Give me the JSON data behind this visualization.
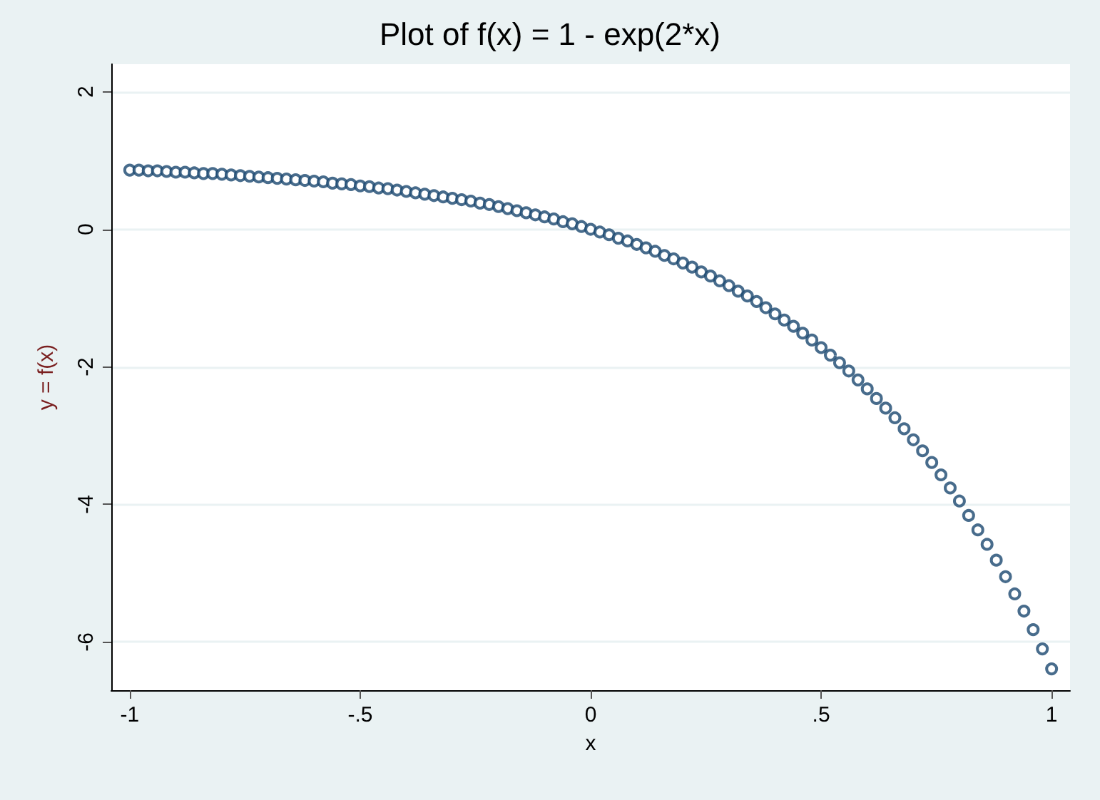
{
  "chart_data": {
    "type": "scatter",
    "title": "Plot of f(x) = 1 - exp(2*x)",
    "xlabel": "x",
    "ylabel": "y = f(x)",
    "x": [
      -1,
      -0.98,
      -0.96,
      -0.94,
      -0.92,
      -0.9,
      -0.88,
      -0.86,
      -0.84,
      -0.82,
      -0.8,
      -0.78,
      -0.76,
      -0.74,
      -0.72,
      -0.7,
      -0.68,
      -0.66,
      -0.64,
      -0.62,
      -0.6,
      -0.58,
      -0.56,
      -0.54,
      -0.52,
      -0.5,
      -0.48,
      -0.46,
      -0.44,
      -0.42,
      -0.4,
      -0.38,
      -0.36,
      -0.34,
      -0.32,
      -0.3,
      -0.28,
      -0.26,
      -0.24,
      -0.22,
      -0.2,
      -0.18,
      -0.16,
      -0.14,
      -0.12,
      -0.1,
      -0.08,
      -0.06,
      -0.04,
      -0.02,
      0,
      0.02,
      0.04,
      0.06,
      0.08,
      0.1,
      0.12,
      0.14,
      0.16,
      0.18,
      0.2,
      0.22,
      0.24,
      0.26,
      0.28,
      0.3,
      0.32,
      0.34,
      0.36,
      0.38,
      0.4,
      0.42,
      0.44,
      0.46,
      0.48,
      0.5,
      0.52,
      0.54,
      0.56,
      0.58,
      0.6,
      0.62,
      0.64,
      0.66,
      0.68,
      0.7,
      0.72,
      0.74,
      0.76,
      0.78,
      0.8,
      0.82,
      0.84,
      0.86,
      0.88,
      0.9,
      0.92,
      0.94,
      0.96,
      0.98,
      1
    ],
    "series": [
      {
        "color": "#1a476f",
        "values": [
          0.86,
          0.86,
          0.85,
          0.85,
          0.84,
          0.83,
          0.83,
          0.82,
          0.81,
          0.81,
          0.8,
          0.79,
          0.78,
          0.77,
          0.76,
          0.75,
          0.74,
          0.73,
          0.72,
          0.71,
          0.7,
          0.69,
          0.67,
          0.66,
          0.65,
          0.63,
          0.62,
          0.6,
          0.59,
          0.57,
          0.55,
          0.53,
          0.51,
          0.49,
          0.47,
          0.45,
          0.43,
          0.41,
          0.38,
          0.36,
          0.33,
          0.3,
          0.27,
          0.24,
          0.21,
          0.18,
          0.15,
          0.11,
          0.08,
          0.04,
          0,
          -0.04,
          -0.08,
          -0.13,
          -0.17,
          -0.22,
          -0.27,
          -0.32,
          -0.38,
          -0.43,
          -0.49,
          -0.55,
          -0.62,
          -0.68,
          -0.75,
          -0.82,
          -0.9,
          -0.97,
          -1.05,
          -1.14,
          -1.23,
          -1.32,
          -1.41,
          -1.51,
          -1.61,
          -1.72,
          -1.83,
          -1.94,
          -2.06,
          -2.19,
          -2.32,
          -2.46,
          -2.6,
          -2.74,
          -2.9,
          -3.06,
          -3.22,
          -3.39,
          -3.57,
          -3.76,
          -3.95,
          -4.16,
          -4.37,
          -4.58,
          -4.81,
          -5.05,
          -5.3,
          -5.55,
          -5.82,
          -6.1,
          -6.39
        ]
      }
    ],
    "xlim": [
      -1.04,
      1.04
    ],
    "xticks": [
      {
        "value": -1,
        "label": "-1"
      },
      {
        "value": -0.5,
        "label": "-.5"
      },
      0,
      {
        "value": 0.5,
        "label": ".5"
      },
      1
    ],
    "ylim": [
      -6.7,
      2.4
    ],
    "yticks": [
      -6,
      -4,
      -2,
      0,
      2
    ],
    "grid": "y",
    "marker": "circle"
  }
}
